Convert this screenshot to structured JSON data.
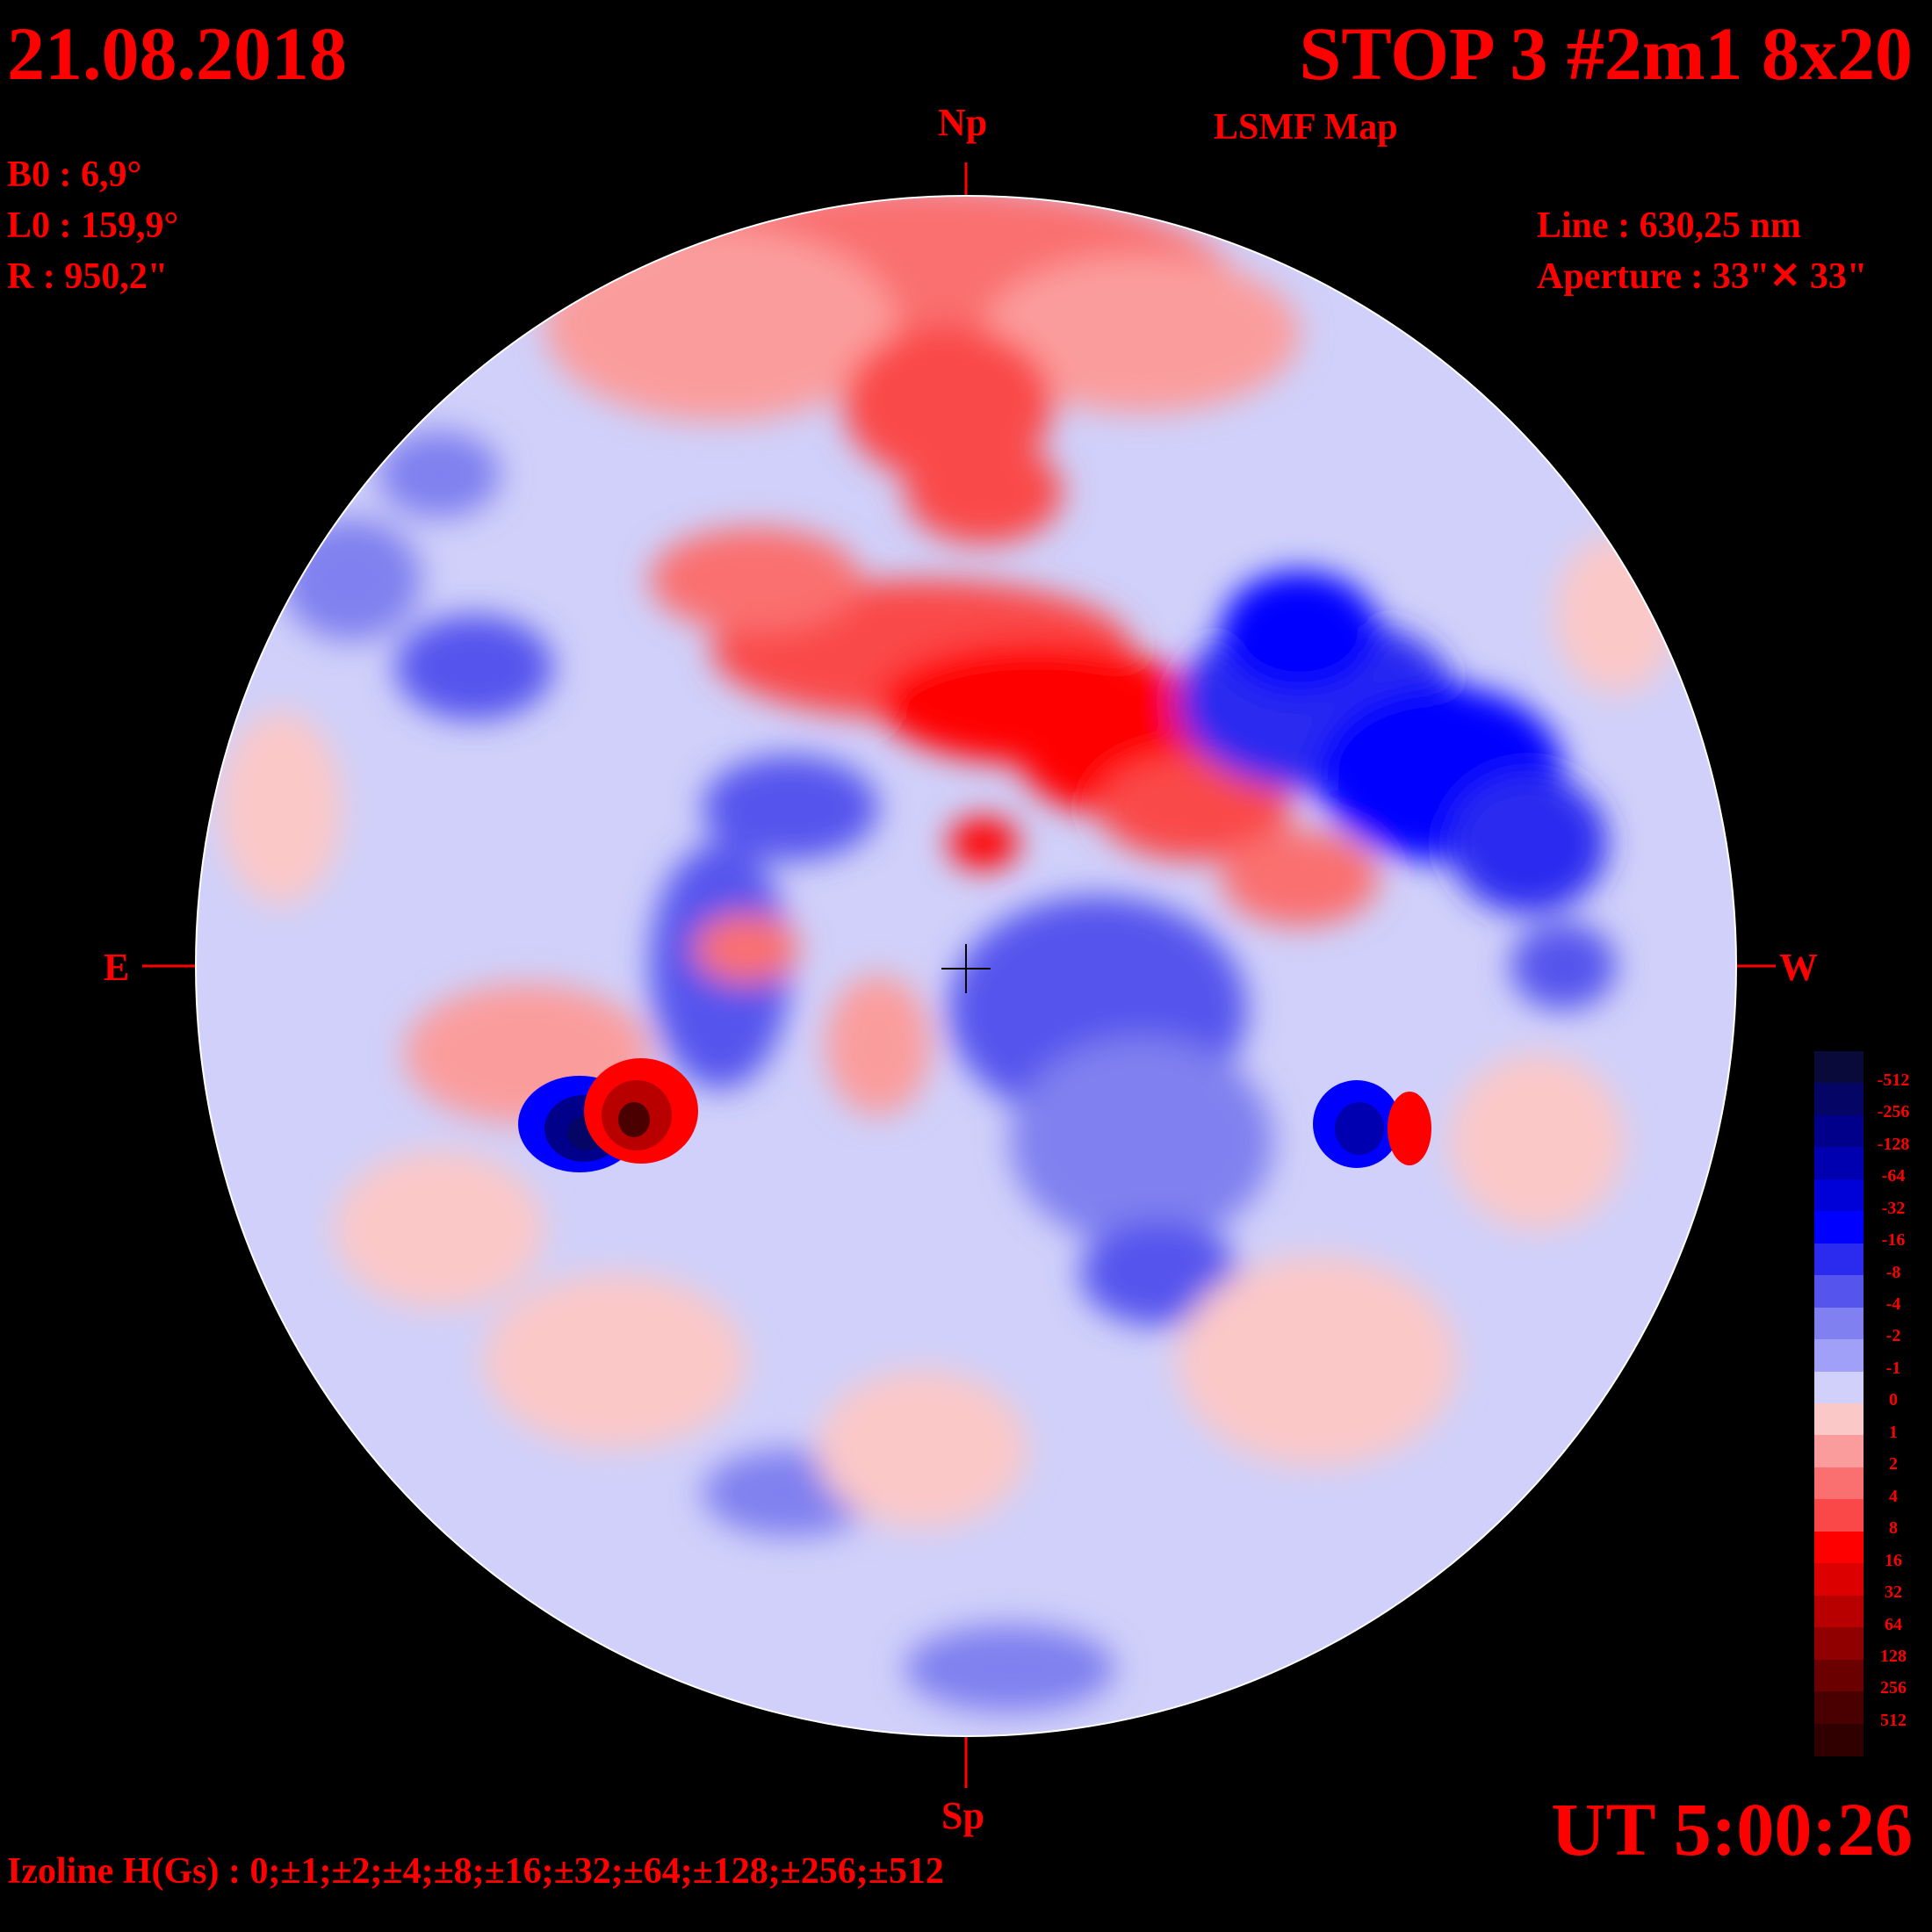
{
  "header": {
    "date": "21.08.2018",
    "title": "STOP 3 #2m1 8x20",
    "subtitle": "LSMF  Map"
  },
  "params": {
    "b0": "B0 : 6,9°",
    "l0": "L0 : 159,9°",
    "r": "R  : 950,2\"",
    "line": "Line :  630,25 nm",
    "aperture": "Aperture : 33\"✕ 33\""
  },
  "orientation": {
    "north": "Np",
    "south": "Sp",
    "east": "E",
    "west": "W"
  },
  "time": "UT 5:00:26",
  "izoline": "Izoline H(Gs) : 0;±1;±2;±4;±8;±16;±32;±64;±128;±256;±512",
  "legend": {
    "levels": [
      {
        "label": "-512",
        "color": "#0a0a3a"
      },
      {
        "label": "-256",
        "color": "#050566"
      },
      {
        "label": "-128",
        "color": "#00008a"
      },
      {
        "label": "-64",
        "color": "#0000b0"
      },
      {
        "label": "-32",
        "color": "#0000d8"
      },
      {
        "label": "-16",
        "color": "#0000ff"
      },
      {
        "label": "-8",
        "color": "#2b2bf0"
      },
      {
        "label": "-4",
        "color": "#5555ee"
      },
      {
        "label": "-2",
        "color": "#8080f0"
      },
      {
        "label": "-1",
        "color": "#a0a0f8"
      },
      {
        "label": "0",
        "color": "#d0d0fa"
      },
      {
        "label": "1",
        "color": "#fbc8c8"
      },
      {
        "label": "2",
        "color": "#fb9c9c"
      },
      {
        "label": "4",
        "color": "#fa7070"
      },
      {
        "label": "8",
        "color": "#fa4848"
      },
      {
        "label": "16",
        "color": "#ff0000"
      },
      {
        "label": "32",
        "color": "#dd0000"
      },
      {
        "label": "64",
        "color": "#b80000"
      },
      {
        "label": "128",
        "color": "#900000"
      },
      {
        "label": "256",
        "color": "#6a0000"
      },
      {
        "label": "512",
        "color": "#4a0000"
      },
      {
        "label": "",
        "color": "#300000"
      }
    ]
  }
}
